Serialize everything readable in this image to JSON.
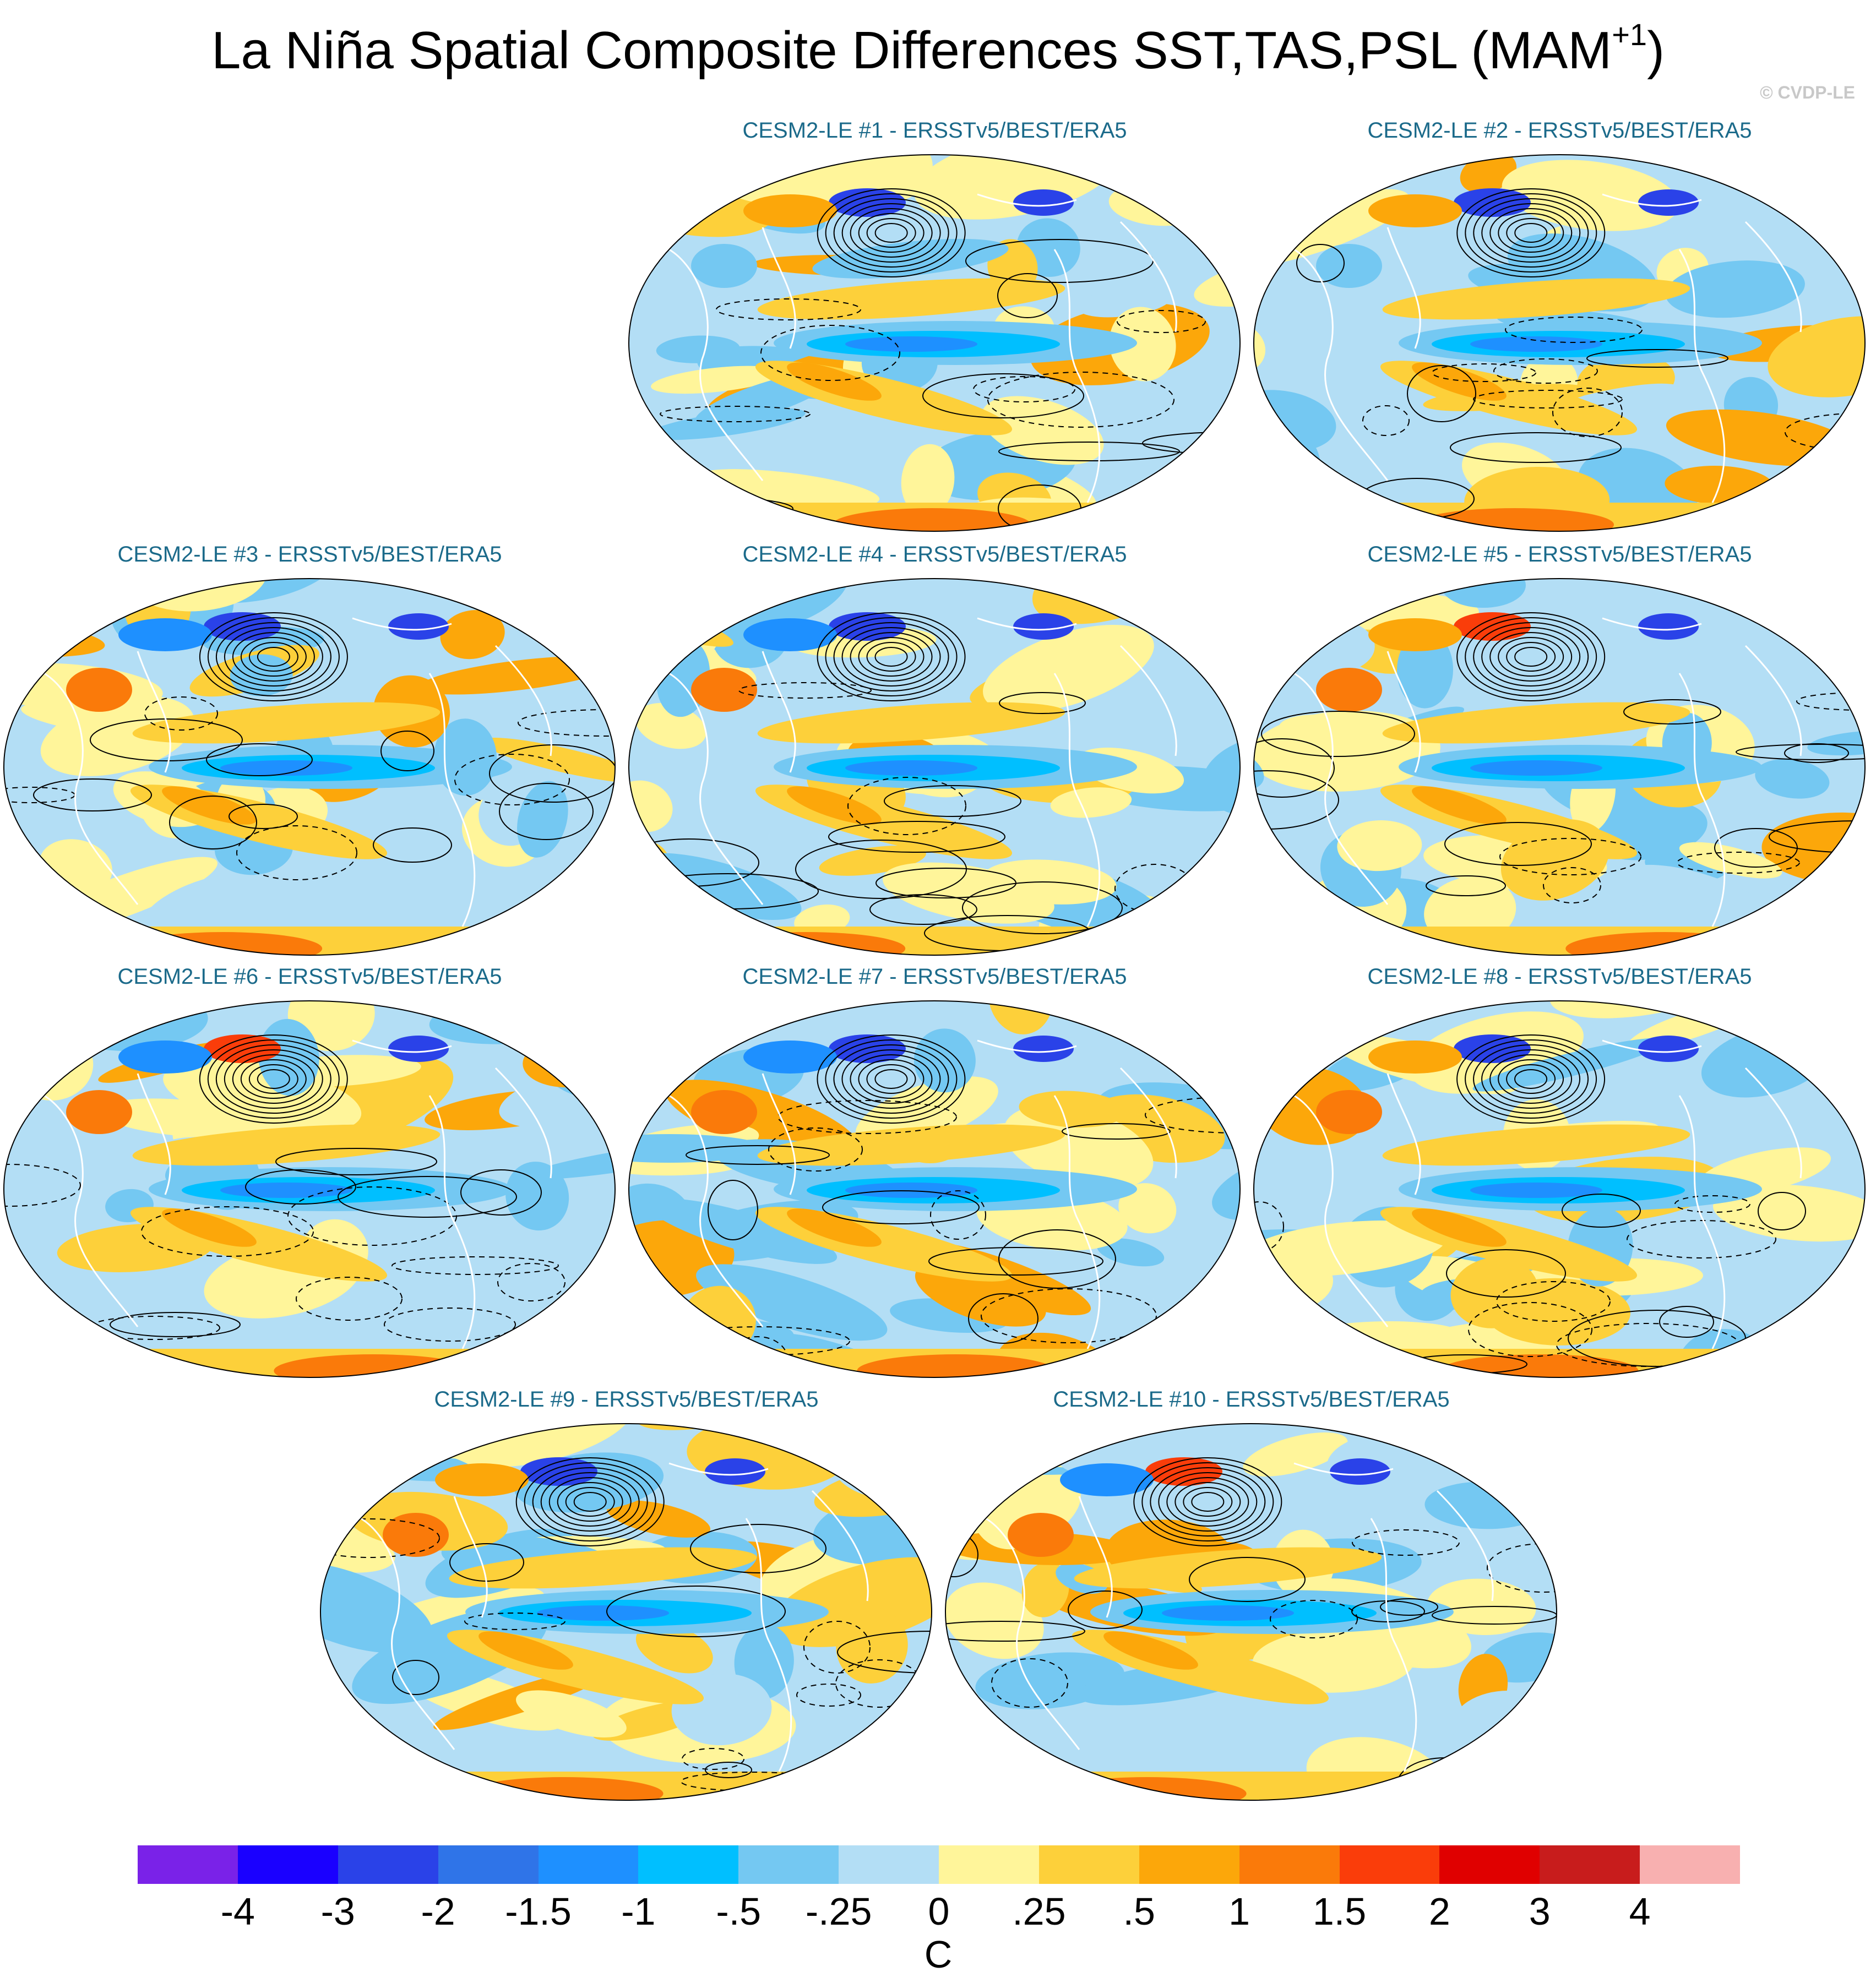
{
  "title": {
    "main": "La Niña Spatial Composite Differences SST,TAS,PSL (MAM",
    "sup": "+1",
    "close": ")"
  },
  "watermark": "© CVDP-LE",
  "panels": [
    {
      "title": "CESM2-LE #1 - ERSSTv5/BEST/ERA5"
    },
    {
      "title": "CESM2-LE #2 - ERSSTv5/BEST/ERA5"
    },
    {
      "title": "CESM2-LE #3 - ERSSTv5/BEST/ERA5"
    },
    {
      "title": "CESM2-LE #4 - ERSSTv5/BEST/ERA5"
    },
    {
      "title": "CESM2-LE #5 - ERSSTv5/BEST/ERA5"
    },
    {
      "title": "CESM2-LE #6 - ERSSTv5/BEST/ERA5"
    },
    {
      "title": "CESM2-LE #7 - ERSSTv5/BEST/ERA5"
    },
    {
      "title": "CESM2-LE #8 - ERSSTv5/BEST/ERA5"
    },
    {
      "title": "CESM2-LE #9 - ERSSTv5/BEST/ERA5"
    },
    {
      "title": "CESM2-LE #10 - ERSSTv5/BEST/ERA5"
    }
  ],
  "colorbar": {
    "colors": [
      "#7a22e8",
      "#1a00ff",
      "#2a42e8",
      "#2f74e8",
      "#1e90ff",
      "#00bfff",
      "#74c8f2",
      "#b3def5",
      "#fff59a",
      "#fdd03a",
      "#fca70a",
      "#fa7a0a",
      "#fa3d0a",
      "#e00000",
      "#c81c1c",
      "#f8b0b0"
    ],
    "labels": [
      "-4",
      "-3",
      "-2",
      "-1.5",
      "-1",
      "-.5",
      "-.25",
      "0",
      ".25",
      ".5",
      "1",
      "1.5",
      "2",
      "3",
      "4"
    ],
    "units": "C"
  }
}
